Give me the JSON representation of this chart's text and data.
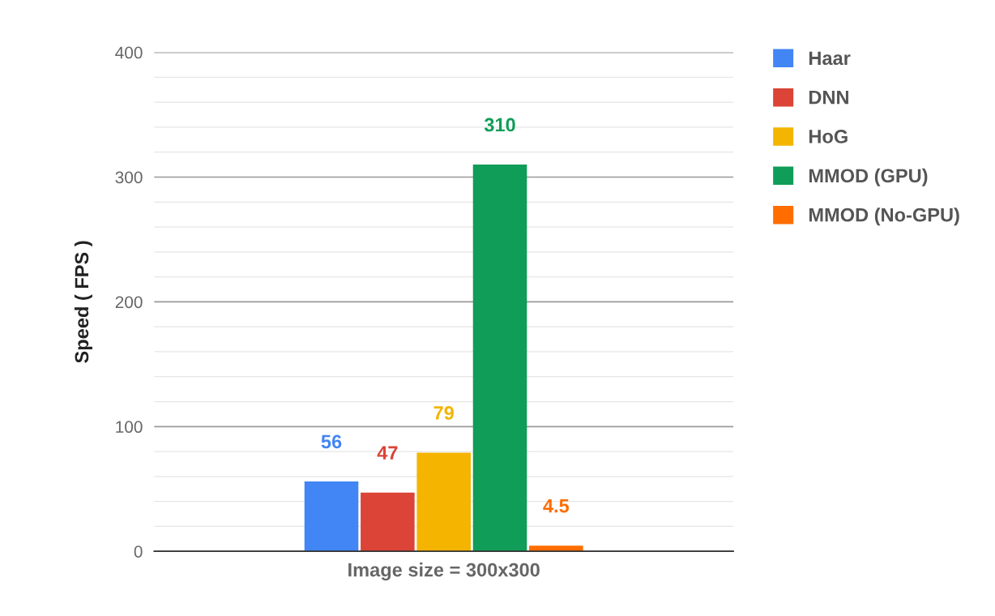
{
  "chart_data": {
    "type": "bar",
    "ylabel": "Speed ( FPS )",
    "categories": [
      "Image size = 300x300"
    ],
    "series": [
      {
        "name": "Haar",
        "color": "#4285f4",
        "values": [
          56
        ]
      },
      {
        "name": "DNN",
        "color": "#db4437",
        "values": [
          47
        ]
      },
      {
        "name": "HoG",
        "color": "#f4b400",
        "values": [
          79
        ]
      },
      {
        "name": "MMOD (GPU)",
        "color": "#0f9d58",
        "values": [
          310
        ]
      },
      {
        "name": "MMOD (No-GPU)",
        "color": "#ff6d01",
        "values": [
          4.5
        ]
      }
    ],
    "ylim": [
      0,
      400
    ],
    "yticks": [
      0,
      {
        "value": 20,
        "label": null
      },
      {
        "value": 40,
        "label": null
      },
      {
        "value": 60,
        "label": null
      },
      {
        "value": 80,
        "label": null
      },
      100,
      {
        "value": 120,
        "label": null
      },
      {
        "value": 140,
        "label": null
      },
      {
        "value": 160,
        "label": null
      },
      {
        "value": 180,
        "label": null
      },
      200,
      {
        "value": 220,
        "label": null
      },
      {
        "value": 240,
        "label": null
      },
      {
        "value": 260,
        "label": null
      },
      {
        "value": 280,
        "label": null
      },
      300,
      {
        "value": 320,
        "label": null
      },
      {
        "value": 340,
        "label": null
      },
      {
        "value": 360,
        "label": null
      },
      {
        "value": 380,
        "label": null
      },
      400
    ],
    "grid": "y",
    "legend": "top right",
    "data_labels": true
  }
}
